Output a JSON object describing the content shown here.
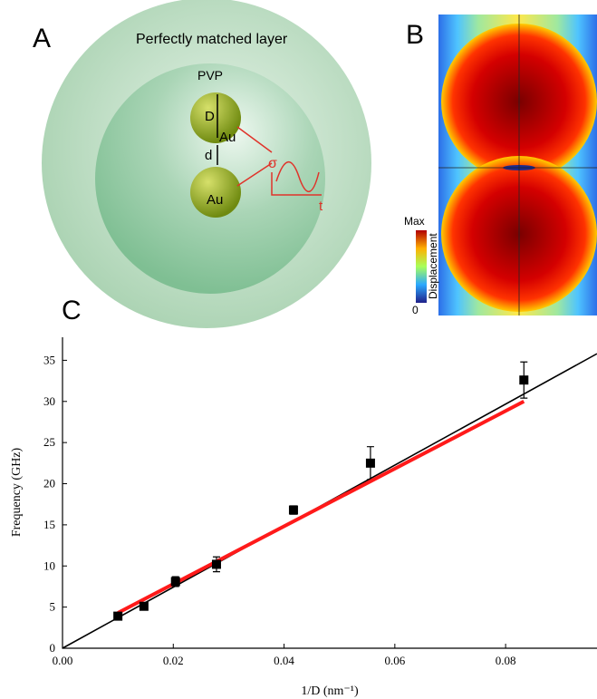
{
  "panel_a": {
    "label": "A",
    "outer_layer": "Perfectly matched layer",
    "inner_layer": "PVP",
    "diameter": "D",
    "top_particle": "Au",
    "gap": "d",
    "bottom_particle": "Au",
    "stress": "σ",
    "time": "t"
  },
  "panel_b": {
    "label": "B",
    "colorbar_max": "Max",
    "colorbar_title": "Displacement",
    "colorbar_min": "0"
  },
  "panel_c": {
    "label": "C"
  },
  "chart_data": {
    "type": "scatter",
    "x_label": "1/D (nm⁻¹)",
    "y_label": "Frequency (GHz)",
    "xlim": [
      0,
      0.0965
    ],
    "ylim": [
      0,
      37.8
    ],
    "xticks": [
      {
        "value": 0,
        "label": "0.00"
      },
      0.02,
      0.04,
      0.06,
      0.08
    ],
    "yticks": [
      0,
      5,
      10,
      15,
      20,
      25,
      30,
      35
    ],
    "grid": false,
    "series": [
      {
        "mode": "markers",
        "color": "#000000",
        "x": [
          0.01,
          0.0147,
          0.0204,
          0.0278,
          0.0417,
          0.0556,
          0.0833
        ],
        "values": [
          3.9,
          5.1,
          8.1,
          10.2,
          16.8,
          22.5,
          32.6
        ],
        "errors": [
          0.3,
          0.3,
          0.6,
          0.9,
          0.5,
          2.0,
          2.2
        ]
      },
      {
        "mode": "line",
        "color": "#000000",
        "x": [
          0,
          0.0965
        ],
        "values": [
          0,
          35.8
        ]
      },
      {
        "mode": "line",
        "color": "#ff1a1a",
        "x": [
          0.01,
          0.0833
        ],
        "values": [
          4.3,
          30.0
        ]
      }
    ]
  }
}
